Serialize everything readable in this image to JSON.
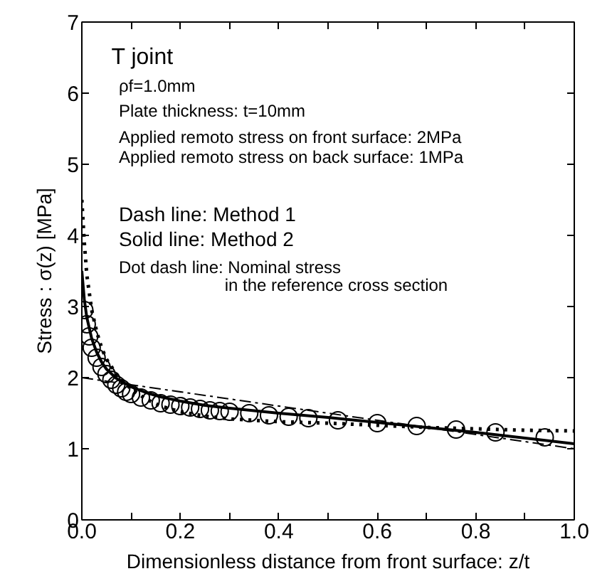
{
  "chart_data": {
    "type": "line",
    "xlabel": "Dimensionless distance from front surface: z/t",
    "ylabel": "Stress : σ(z) [MPa]",
    "xlim": [
      0,
      1
    ],
    "ylim": [
      0,
      7
    ],
    "xticks": [
      {
        "value": 0,
        "label": "0.0"
      },
      {
        "value": 0.1,
        "label": null
      },
      {
        "value": 0.2,
        "label": "0.2"
      },
      {
        "value": 0.3,
        "label": null
      },
      {
        "value": 0.4,
        "label": "0.4"
      },
      {
        "value": 0.5,
        "label": null
      },
      {
        "value": 0.6,
        "label": "0.6"
      },
      {
        "value": 0.7,
        "label": null
      },
      {
        "value": 0.8,
        "label": "0.8"
      },
      {
        "value": 0.9,
        "label": null
      },
      {
        "value": 1,
        "label": "1.0"
      }
    ],
    "yticks": [
      0,
      1,
      2,
      3,
      4,
      5,
      6,
      7
    ],
    "grid": false,
    "annotations": [
      "T joint",
      "ρf=1.0mm",
      "Plate thickness: t=10mm",
      "Applied remoto stress on front surface: 2MPa",
      "Applied remoto stress on back surface: 1MPa",
      "Dash line: Method 1",
      "Solid line: Method 2",
      "Dot dash line: Nominal stress",
      "in the reference cross section"
    ],
    "series": [
      {
        "type": "scatter",
        "marker": "circle",
        "color": "#000000",
        "x": [
          0.005,
          0.01,
          0.015,
          0.02,
          0.03,
          0.04,
          0.05,
          0.06,
          0.07,
          0.08,
          0.09,
          0.1,
          0.12,
          0.14,
          0.16,
          0.18,
          0.2,
          0.22,
          0.24,
          0.26,
          0.28,
          0.3,
          0.34,
          0.38,
          0.42,
          0.46,
          0.52,
          0.6,
          0.68,
          0.76,
          0.84,
          0.94
        ],
        "values": [
          2.95,
          2.75,
          2.58,
          2.42,
          2.28,
          2.15,
          2.05,
          1.97,
          1.9,
          1.85,
          1.8,
          1.77,
          1.72,
          1.68,
          1.64,
          1.62,
          1.6,
          1.58,
          1.56,
          1.54,
          1.53,
          1.52,
          1.5,
          1.47,
          1.45,
          1.43,
          1.4,
          1.36,
          1.32,
          1.27,
          1.23,
          1.16
        ]
      },
      {
        "line_style": "dotted",
        "color": "#000000",
        "x": [
          0,
          0.005,
          0.01,
          0.02,
          0.03,
          0.04,
          0.05,
          0.07,
          0.1,
          0.13,
          0.16,
          0.2,
          0.25,
          0.3,
          0.4,
          0.5,
          0.6,
          0.7,
          0.8,
          0.9,
          1.0
        ],
        "values": [
          4.5,
          3.9,
          3.45,
          2.95,
          2.65,
          2.42,
          2.26,
          2.05,
          1.84,
          1.7,
          1.6,
          1.52,
          1.46,
          1.42,
          1.38,
          1.36,
          1.33,
          1.3,
          1.28,
          1.26,
          1.25
        ]
      },
      {
        "line_style": "solid",
        "color": "#000000",
        "x": [
          0,
          0.005,
          0.01,
          0.02,
          0.03,
          0.04,
          0.05,
          0.07,
          0.1,
          0.13,
          0.16,
          0.2,
          0.25,
          0.3,
          0.4,
          0.5,
          0.6,
          0.7,
          0.8,
          0.9,
          1.0
        ],
        "values": [
          3.5,
          3.1,
          2.85,
          2.55,
          2.36,
          2.22,
          2.12,
          1.99,
          1.87,
          1.79,
          1.73,
          1.67,
          1.61,
          1.57,
          1.5,
          1.44,
          1.37,
          1.3,
          1.23,
          1.15,
          1.07
        ]
      },
      {
        "line_style": "dashdot",
        "color": "#000000",
        "x": [
          0,
          1
        ],
        "values": [
          2.0,
          1.0
        ]
      }
    ]
  }
}
